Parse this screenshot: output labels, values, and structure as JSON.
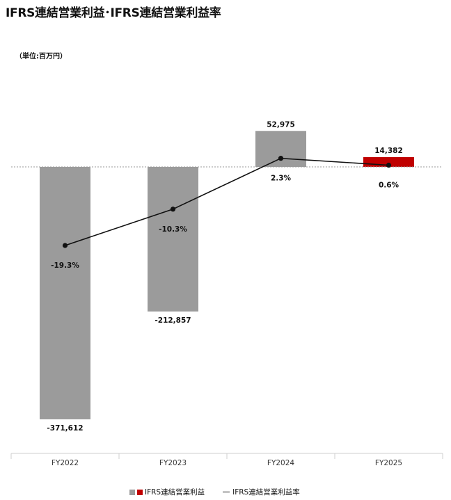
{
  "title": "IFRS連結営業利益･IFRS連結営業利益率",
  "unit_label": "（単位:百万円）",
  "legend": {
    "bar_label": "IFRS連結営業利益",
    "line_label": "IFRS連結営業利益率"
  },
  "colors": {
    "bar_default": "#9b9b9b",
    "bar_highlight": "#c00000",
    "line": "#111111"
  },
  "chart_data": {
    "type": "bar",
    "categories": [
      "FY2022",
      "FY2023",
      "FY2024",
      "FY2025"
    ],
    "series": [
      {
        "name": "IFRS連結営業利益",
        "type": "bar",
        "values": [
          -371612,
          -212857,
          52975,
          14382
        ],
        "labels": [
          "-371,612",
          "-212,857",
          "52,975",
          "14,382"
        ],
        "highlight_index": 3
      },
      {
        "name": "IFRS連結営業利益率",
        "type": "line",
        "values": [
          -19.3,
          -10.3,
          2.3,
          0.6
        ],
        "labels": [
          "-19.3%",
          "-10.3%",
          "2.3%",
          "0.6%"
        ]
      }
    ],
    "grid": false,
    "legend_position": "bottom-center"
  }
}
